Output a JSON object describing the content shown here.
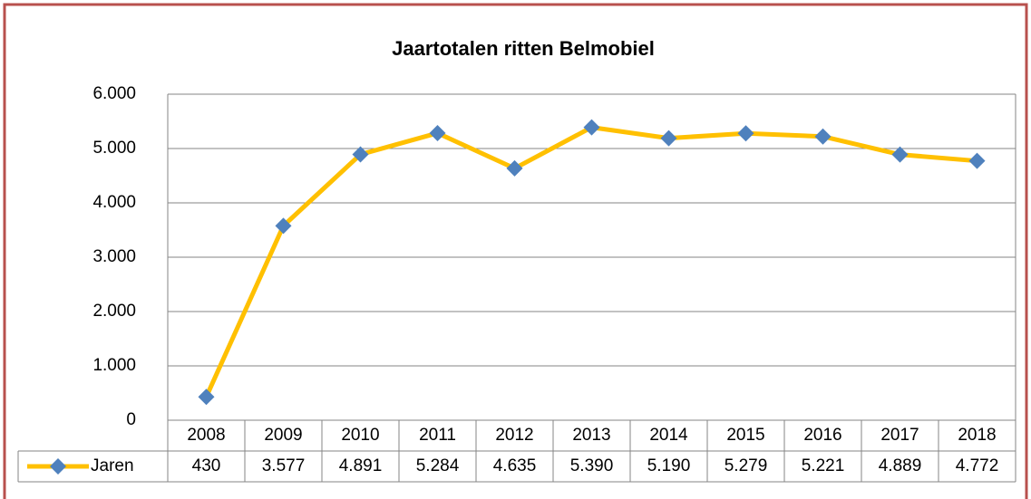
{
  "chart_data": {
    "type": "line",
    "title": "Jaartotalen ritten Belmobiel",
    "categories": [
      "2008",
      "2009",
      "2010",
      "2011",
      "2012",
      "2013",
      "2014",
      "2015",
      "2016",
      "2017",
      "2018"
    ],
    "series": [
      {
        "name": "Jaren",
        "color": "#FFC000",
        "marker_color": "#4F81BD",
        "values": [
          430,
          3577,
          4891,
          5284,
          4635,
          5390,
          5190,
          5279,
          5221,
          4889,
          4772
        ],
        "value_labels": [
          "430",
          "3.577",
          "4.891",
          "5.284",
          "4.635",
          "5.390",
          "5.190",
          "5.279",
          "5.221",
          "4.889",
          "4.772"
        ]
      }
    ],
    "ylim": [
      0,
      6000
    ],
    "yticks": [
      0,
      {
        "value": 1000,
        "label": "1.000"
      },
      {
        "value": 2000,
        "label": "2.000"
      },
      {
        "value": 3000,
        "label": "3.000"
      },
      {
        "value": 4000,
        "label": "4.000"
      },
      {
        "value": 5000,
        "label": "5.000"
      },
      {
        "value": 6000,
        "label": "6.000"
      }
    ],
    "grid": true
  }
}
